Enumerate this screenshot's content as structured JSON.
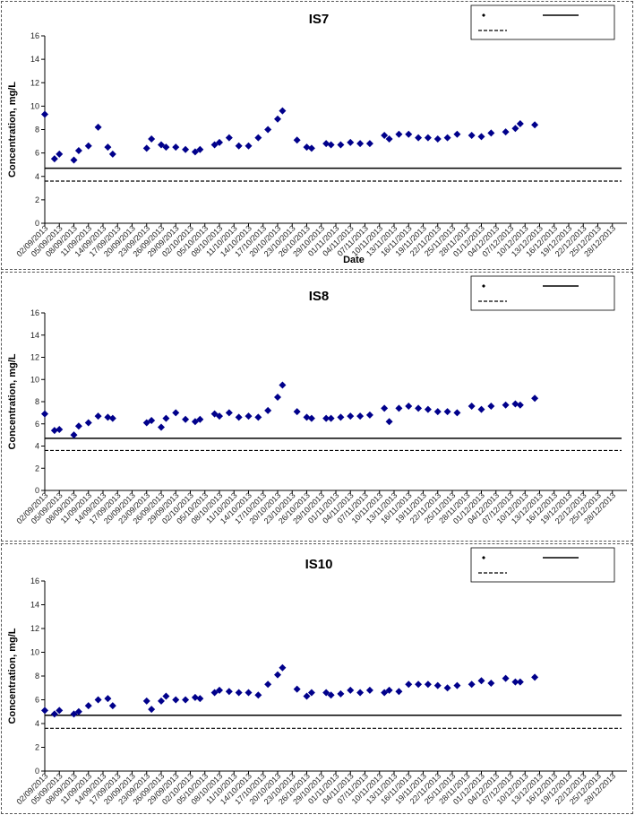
{
  "chart_data": [
    {
      "type": "scatter",
      "title": "IS7",
      "xlabel": "Date",
      "ylabel": "Concentration, mg/L",
      "ylim": [
        0,
        16
      ],
      "yticks": [
        "0",
        "2",
        "4",
        "6",
        "8",
        "10",
        "12",
        "14",
        "16"
      ],
      "xlim": [
        "02/09/2013",
        "31/12/2013"
      ],
      "xticks": [
        "02/09/2013",
        "05/09/2013",
        "08/09/2013",
        "11/09/2013",
        "14/09/2013",
        "17/09/2013",
        "20/09/2013",
        "23/09/2013",
        "26/09/2013",
        "29/09/2013",
        "02/10/2013",
        "05/10/2013",
        "08/10/2013",
        "11/10/2013",
        "14/10/2013",
        "17/10/2013",
        "20/10/2013",
        "23/10/2013",
        "26/10/2013",
        "29/10/2013",
        "01/11/2013",
        "04/11/2013",
        "07/11/2013",
        "10/11/2013",
        "13/11/2013",
        "16/11/2013",
        "19/11/2013",
        "22/11/2013",
        "25/11/2013",
        "28/11/2013",
        "01/12/2013",
        "04/12/2013",
        "07/12/2013",
        "10/12/2013",
        "13/12/2013",
        "16/12/2013",
        "19/12/2013",
        "22/12/2013",
        "25/12/2013",
        "28/12/2013"
      ],
      "grid": false,
      "legend_placement": "top-right",
      "legend_text": "",
      "reference_lines": [
        {
          "style": "solid",
          "value": 4.7
        },
        {
          "style": "dashed",
          "value": 3.6
        }
      ],
      "series_color": "#00008B",
      "points": [
        [
          "02/09/2013",
          9.3
        ],
        [
          "04/09/2013",
          5.5
        ],
        [
          "05/09/2013",
          5.9
        ],
        [
          "08/09/2013",
          5.4
        ],
        [
          "09/09/2013",
          6.2
        ],
        [
          "11/09/2013",
          6.6
        ],
        [
          "13/09/2013",
          8.2
        ],
        [
          "15/09/2013",
          6.5
        ],
        [
          "16/09/2013",
          5.9
        ],
        [
          "23/09/2013",
          6.4
        ],
        [
          "24/09/2013",
          7.2
        ],
        [
          "26/09/2013",
          6.7
        ],
        [
          "27/09/2013",
          6.5
        ],
        [
          "29/09/2013",
          6.5
        ],
        [
          "01/10/2013",
          6.3
        ],
        [
          "03/10/2013",
          6.1
        ],
        [
          "04/10/2013",
          6.3
        ],
        [
          "07/10/2013",
          6.7
        ],
        [
          "08/10/2013",
          6.9
        ],
        [
          "10/10/2013",
          7.3
        ],
        [
          "12/10/2013",
          6.6
        ],
        [
          "14/10/2013",
          6.6
        ],
        [
          "16/10/2013",
          7.3
        ],
        [
          "18/10/2013",
          8.0
        ],
        [
          "20/10/2013",
          8.9
        ],
        [
          "21/10/2013",
          9.6
        ],
        [
          "24/10/2013",
          7.1
        ],
        [
          "26/10/2013",
          6.5
        ],
        [
          "27/10/2013",
          6.4
        ],
        [
          "30/10/2013",
          6.8
        ],
        [
          "31/10/2013",
          6.7
        ],
        [
          "02/11/2013",
          6.7
        ],
        [
          "04/11/2013",
          6.9
        ],
        [
          "06/11/2013",
          6.8
        ],
        [
          "08/11/2013",
          6.8
        ],
        [
          "11/11/2013",
          7.5
        ],
        [
          "12/11/2013",
          7.2
        ],
        [
          "14/11/2013",
          7.6
        ],
        [
          "16/11/2013",
          7.6
        ],
        [
          "18/11/2013",
          7.3
        ],
        [
          "20/11/2013",
          7.3
        ],
        [
          "22/11/2013",
          7.2
        ],
        [
          "24/11/2013",
          7.3
        ],
        [
          "26/11/2013",
          7.6
        ],
        [
          "29/11/2013",
          7.5
        ],
        [
          "01/12/2013",
          7.4
        ],
        [
          "03/12/2013",
          7.7
        ],
        [
          "06/12/2013",
          7.8
        ],
        [
          "08/12/2013",
          8.1
        ],
        [
          "09/12/2013",
          8.5
        ],
        [
          "12/12/2013",
          8.4
        ]
      ]
    },
    {
      "type": "scatter",
      "title": "IS8",
      "xlabel": "",
      "ylabel": "Concentration, mg/L",
      "ylim": [
        0,
        16
      ],
      "yticks": [
        "0",
        "2",
        "4",
        "6",
        "8",
        "10",
        "12",
        "14",
        "16"
      ],
      "xlim": [
        "02/09/2013",
        "31/12/2013"
      ],
      "xticks": [
        "02/09/2013",
        "05/09/2013",
        "08/09/2013",
        "11/09/2013",
        "14/09/2013",
        "17/09/2013",
        "20/09/2013",
        "23/09/2013",
        "26/09/2013",
        "29/09/2013",
        "02/10/2013",
        "05/10/2013",
        "08/10/2013",
        "11/10/2013",
        "14/10/2013",
        "17/10/2013",
        "20/10/2013",
        "23/10/2013",
        "26/10/2013",
        "29/10/2013",
        "01/11/2013",
        "04/11/2013",
        "07/11/2013",
        "10/11/2013",
        "13/11/2013",
        "16/11/2013",
        "19/11/2013",
        "22/11/2013",
        "25/11/2013",
        "28/11/2013",
        "01/12/2013",
        "04/12/2013",
        "07/12/2013",
        "10/12/2013",
        "13/12/2013",
        "16/12/2013",
        "19/12/2013",
        "22/12/2013",
        "25/12/2013",
        "28/12/2013"
      ],
      "grid": false,
      "legend_placement": "top-right",
      "legend_text": "",
      "reference_lines": [
        {
          "style": "solid",
          "value": 4.7
        },
        {
          "style": "dashed",
          "value": 3.6
        }
      ],
      "series_color": "#00008B",
      "points": [
        [
          "02/09/2013",
          6.9
        ],
        [
          "04/09/2013",
          5.4
        ],
        [
          "05/09/2013",
          5.5
        ],
        [
          "08/09/2013",
          5.0
        ],
        [
          "09/09/2013",
          5.8
        ],
        [
          "11/09/2013",
          6.1
        ],
        [
          "13/09/2013",
          6.7
        ],
        [
          "15/09/2013",
          6.6
        ],
        [
          "16/09/2013",
          6.5
        ],
        [
          "23/09/2013",
          6.1
        ],
        [
          "24/09/2013",
          6.3
        ],
        [
          "26/09/2013",
          5.7
        ],
        [
          "27/09/2013",
          6.5
        ],
        [
          "29/09/2013",
          7.0
        ],
        [
          "01/10/2013",
          6.4
        ],
        [
          "03/10/2013",
          6.2
        ],
        [
          "04/10/2013",
          6.4
        ],
        [
          "07/10/2013",
          6.9
        ],
        [
          "08/10/2013",
          6.7
        ],
        [
          "10/10/2013",
          7.0
        ],
        [
          "12/10/2013",
          6.6
        ],
        [
          "14/10/2013",
          6.7
        ],
        [
          "16/10/2013",
          6.6
        ],
        [
          "18/10/2013",
          7.2
        ],
        [
          "20/10/2013",
          8.4
        ],
        [
          "21/10/2013",
          9.5
        ],
        [
          "24/10/2013",
          7.1
        ],
        [
          "26/10/2013",
          6.6
        ],
        [
          "27/10/2013",
          6.5
        ],
        [
          "30/10/2013",
          6.5
        ],
        [
          "31/10/2013",
          6.5
        ],
        [
          "02/11/2013",
          6.6
        ],
        [
          "04/11/2013",
          6.7
        ],
        [
          "06/11/2013",
          6.7
        ],
        [
          "08/11/2013",
          6.8
        ],
        [
          "11/11/2013",
          7.4
        ],
        [
          "12/11/2013",
          6.2
        ],
        [
          "14/11/2013",
          7.4
        ],
        [
          "16/11/2013",
          7.6
        ],
        [
          "18/11/2013",
          7.4
        ],
        [
          "20/11/2013",
          7.3
        ],
        [
          "22/11/2013",
          7.1
        ],
        [
          "24/11/2013",
          7.1
        ],
        [
          "26/11/2013",
          7.0
        ],
        [
          "29/11/2013",
          7.6
        ],
        [
          "01/12/2013",
          7.3
        ],
        [
          "03/12/2013",
          7.6
        ],
        [
          "06/12/2013",
          7.7
        ],
        [
          "08/12/2013",
          7.8
        ],
        [
          "09/12/2013",
          7.7
        ],
        [
          "12/12/2013",
          8.3
        ]
      ]
    },
    {
      "type": "scatter",
      "title": "IS10",
      "xlabel": "",
      "ylabel": "Concentration, mg/L",
      "ylim": [
        0,
        16
      ],
      "yticks": [
        "0",
        "2",
        "4",
        "6",
        "8",
        "10",
        "12",
        "14",
        "16"
      ],
      "xlim": [
        "02/09/2013",
        "31/12/2013"
      ],
      "xticks": [
        "02/09/2013",
        "05/09/2013",
        "08/09/2013",
        "11/09/2013",
        "14/09/2013",
        "17/09/2013",
        "20/09/2013",
        "23/09/2013",
        "26/09/2013",
        "29/09/2013",
        "02/10/2013",
        "05/10/2013",
        "08/10/2013",
        "11/10/2013",
        "14/10/2013",
        "17/10/2013",
        "20/10/2013",
        "23/10/2013",
        "26/10/2013",
        "29/10/2013",
        "01/11/2013",
        "04/11/2013",
        "07/11/2013",
        "10/11/2013",
        "13/11/2013",
        "16/11/2013",
        "19/11/2013",
        "22/11/2013",
        "25/11/2013",
        "28/11/2013",
        "01/12/2013",
        "04/12/2013",
        "07/12/2013",
        "10/12/2013",
        "13/12/2013",
        "16/12/2013",
        "19/12/2013",
        "22/12/2013",
        "25/12/2013",
        "28/12/2013"
      ],
      "grid": false,
      "legend_placement": "top-right",
      "legend_text": "",
      "reference_lines": [
        {
          "style": "solid",
          "value": 4.7
        },
        {
          "style": "dashed",
          "value": 3.6
        }
      ],
      "series_color": "#00008B",
      "points": [
        [
          "02/09/2013",
          5.1
        ],
        [
          "04/09/2013",
          4.8
        ],
        [
          "05/09/2013",
          5.1
        ],
        [
          "08/09/2013",
          4.8
        ],
        [
          "09/09/2013",
          5.0
        ],
        [
          "11/09/2013",
          5.5
        ],
        [
          "13/09/2013",
          6.0
        ],
        [
          "15/09/2013",
          6.1
        ],
        [
          "16/09/2013",
          5.5
        ],
        [
          "23/09/2013",
          5.9
        ],
        [
          "24/09/2013",
          5.2
        ],
        [
          "26/09/2013",
          5.9
        ],
        [
          "27/09/2013",
          6.3
        ],
        [
          "29/09/2013",
          6.0
        ],
        [
          "01/10/2013",
          6.0
        ],
        [
          "03/10/2013",
          6.2
        ],
        [
          "04/10/2013",
          6.1
        ],
        [
          "07/10/2013",
          6.6
        ],
        [
          "08/10/2013",
          6.8
        ],
        [
          "10/10/2013",
          6.7
        ],
        [
          "12/10/2013",
          6.6
        ],
        [
          "14/10/2013",
          6.6
        ],
        [
          "16/10/2013",
          6.4
        ],
        [
          "18/10/2013",
          7.3
        ],
        [
          "20/10/2013",
          8.1
        ],
        [
          "21/10/2013",
          8.7
        ],
        [
          "24/10/2013",
          6.9
        ],
        [
          "26/10/2013",
          6.3
        ],
        [
          "27/10/2013",
          6.6
        ],
        [
          "30/10/2013",
          6.6
        ],
        [
          "31/10/2013",
          6.4
        ],
        [
          "02/11/2013",
          6.5
        ],
        [
          "04/11/2013",
          6.8
        ],
        [
          "06/11/2013",
          6.6
        ],
        [
          "08/11/2013",
          6.8
        ],
        [
          "11/11/2013",
          6.6
        ],
        [
          "12/11/2013",
          6.8
        ],
        [
          "14/11/2013",
          6.7
        ],
        [
          "16/11/2013",
          7.3
        ],
        [
          "18/11/2013",
          7.3
        ],
        [
          "20/11/2013",
          7.3
        ],
        [
          "22/11/2013",
          7.2
        ],
        [
          "24/11/2013",
          7.0
        ],
        [
          "26/11/2013",
          7.2
        ],
        [
          "29/11/2013",
          7.3
        ],
        [
          "01/12/2013",
          7.6
        ],
        [
          "03/12/2013",
          7.4
        ],
        [
          "06/12/2013",
          7.8
        ],
        [
          "08/12/2013",
          7.5
        ],
        [
          "09/12/2013",
          7.5
        ],
        [
          "12/12/2013",
          7.9
        ]
      ]
    }
  ]
}
